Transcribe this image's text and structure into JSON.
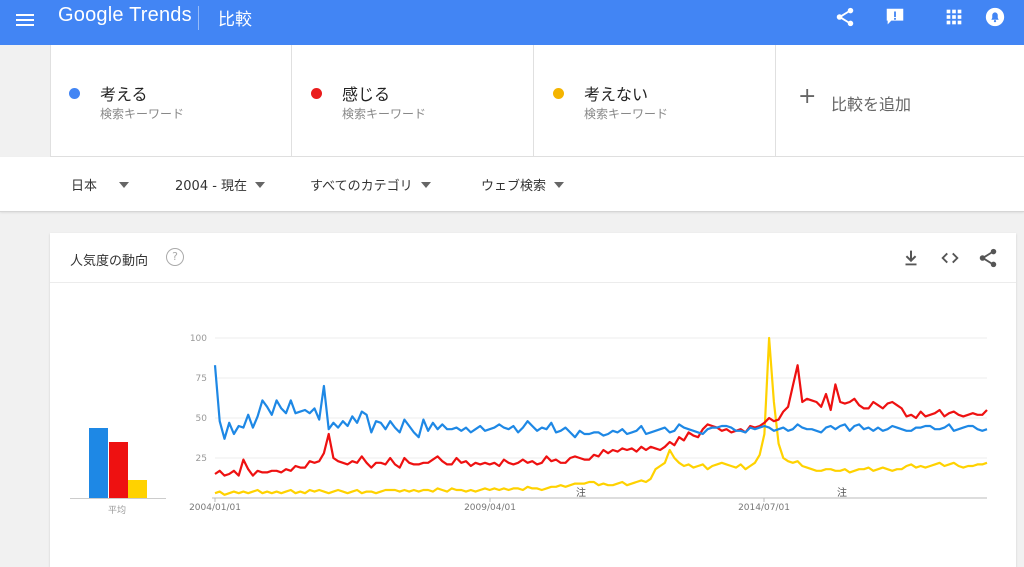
{
  "app": {
    "logo": "Google Trends",
    "page_title": "比較"
  },
  "terms": [
    {
      "name": "考える",
      "type": "検索キーワード",
      "color": "#4285f4"
    },
    {
      "name": "感じる",
      "type": "検索キーワード",
      "color": "#ea1c1c"
    },
    {
      "name": "考えない",
      "type": "検索キーワード",
      "color": "#f4b400"
    }
  ],
  "add_compare": {
    "icon": "plus-icon",
    "label": "比較を追加"
  },
  "filters": {
    "region": "日本",
    "period": "2004 - 現在",
    "category": "すべてのカテゴリ",
    "search_type": "ウェブ検索"
  },
  "card": {
    "title": "人気度の動向",
    "help": "?",
    "avg_label": "平均"
  },
  "colors": {
    "blue": "#1e88e5",
    "red": "#ee1111",
    "yellow": "#ffd200",
    "header": "#4285f4"
  },
  "chart_data": {
    "type": "line",
    "ylim": [
      0,
      100
    ],
    "yticks": [
      "100",
      "75",
      "50",
      "25"
    ],
    "xtick_labels": [
      "2004/01/01",
      "2009/04/01",
      "2014/07/01"
    ],
    "annotations": [
      "注",
      "注"
    ],
    "averages": {
      "考える": 44,
      "感じる": 35,
      "考えない": 11
    },
    "series": [
      {
        "name": "考える",
        "color": "#1e88e5",
        "values": [
          83,
          48,
          37,
          47,
          40,
          45,
          44,
          52,
          44,
          51,
          61,
          57,
          52,
          61,
          56,
          53,
          61,
          53,
          54,
          55,
          53,
          56,
          49,
          70,
          43,
          47,
          44,
          48,
          45,
          51,
          47,
          54,
          52,
          41,
          48,
          47,
          43,
          48,
          44,
          41,
          49,
          45,
          41,
          38,
          49,
          42,
          47,
          43,
          46,
          43,
          43,
          44,
          42,
          44,
          41,
          43,
          45,
          42,
          43,
          44,
          46,
          44,
          43,
          45,
          41,
          44,
          48,
          45,
          42,
          44,
          43,
          47,
          41,
          42,
          44,
          41,
          38,
          42,
          40,
          40,
          41,
          41,
          39,
          40,
          42,
          41,
          43,
          40,
          41,
          42,
          45,
          40,
          41,
          42,
          43,
          44,
          41,
          42,
          46,
          44,
          43,
          42,
          41,
          40,
          43,
          44,
          44,
          45,
          45,
          44,
          42,
          42,
          41,
          44,
          43,
          44,
          45,
          44,
          42,
          43,
          44,
          42,
          43,
          46,
          44,
          43,
          43,
          42,
          41,
          44,
          45,
          43,
          45,
          46,
          42,
          45,
          46,
          43,
          44,
          42,
          44,
          42,
          43,
          45,
          44,
          43,
          42,
          42,
          44,
          44,
          45,
          45,
          43,
          43,
          44,
          46,
          42,
          43,
          44,
          45,
          45,
          43,
          42,
          43
        ]
      },
      {
        "name": "感じる",
        "color": "#ee1111",
        "values": [
          15,
          17,
          14,
          15,
          17,
          14,
          24,
          18,
          14,
          17,
          16,
          16,
          17,
          17,
          16,
          18,
          17,
          20,
          19,
          19,
          23,
          22,
          23,
          28,
          40,
          25,
          23,
          22,
          21,
          23,
          22,
          26,
          22,
          19,
          22,
          22,
          21,
          25,
          21,
          19,
          25,
          22,
          21,
          21,
          22,
          22,
          24,
          26,
          23,
          21,
          21,
          25,
          22,
          23,
          20,
          22,
          21,
          22,
          21,
          22,
          20,
          24,
          22,
          21,
          22,
          24,
          22,
          23,
          21,
          22,
          26,
          23,
          24,
          22,
          22,
          25,
          26,
          25,
          24,
          24,
          27,
          26,
          30,
          28,
          30,
          29,
          31,
          30,
          31,
          29,
          32,
          30,
          32,
          31,
          30,
          32,
          35,
          33,
          38,
          36,
          41,
          39,
          38,
          43,
          46,
          45,
          44,
          42,
          43,
          41,
          42,
          43,
          41,
          45,
          44,
          45,
          47,
          50,
          48,
          49,
          54,
          57,
          70,
          83,
          60,
          62,
          61,
          60,
          57,
          65,
          55,
          71,
          60,
          59,
          60,
          62,
          58,
          56,
          56,
          60,
          58,
          56,
          59,
          60,
          58,
          56,
          51,
          52,
          50,
          54,
          51,
          52,
          53,
          55,
          51,
          53,
          54,
          52,
          51,
          52,
          53,
          52,
          52,
          55
        ]
      },
      {
        "name": "考えない",
        "color": "#ffd200",
        "values": [
          3,
          4,
          2,
          3,
          4,
          3,
          4,
          3,
          4,
          5,
          3,
          4,
          3,
          4,
          3,
          4,
          5,
          3,
          4,
          3,
          5,
          4,
          5,
          4,
          3,
          4,
          5,
          4,
          3,
          4,
          5,
          3,
          4,
          4,
          3,
          4,
          5,
          5,
          5,
          4,
          5,
          4,
          5,
          4,
          5,
          5,
          4,
          6,
          5,
          4,
          6,
          5,
          5,
          4,
          5,
          4,
          5,
          6,
          5,
          6,
          5,
          6,
          5,
          6,
          6,
          5,
          7,
          6,
          6,
          5,
          6,
          7,
          7,
          8,
          7,
          8,
          9,
          9,
          9,
          10,
          10,
          8,
          9,
          8,
          8,
          9,
          10,
          8,
          9,
          10,
          11,
          10,
          12,
          18,
          20,
          22,
          30,
          25,
          22,
          20,
          21,
          19,
          20,
          21,
          18,
          20,
          21,
          22,
          21,
          20,
          19,
          21,
          18,
          20,
          22,
          27,
          40,
          100,
          60,
          34,
          25,
          23,
          22,
          23,
          20,
          19,
          18,
          17,
          17,
          18,
          18,
          17,
          17,
          18,
          16,
          17,
          18,
          18,
          19,
          17,
          18,
          19,
          18,
          17,
          18,
          18,
          20,
          21,
          19,
          20,
          19,
          20,
          21,
          22,
          20,
          21,
          22,
          20,
          19,
          20,
          20,
          21,
          21,
          22
        ]
      }
    ]
  }
}
